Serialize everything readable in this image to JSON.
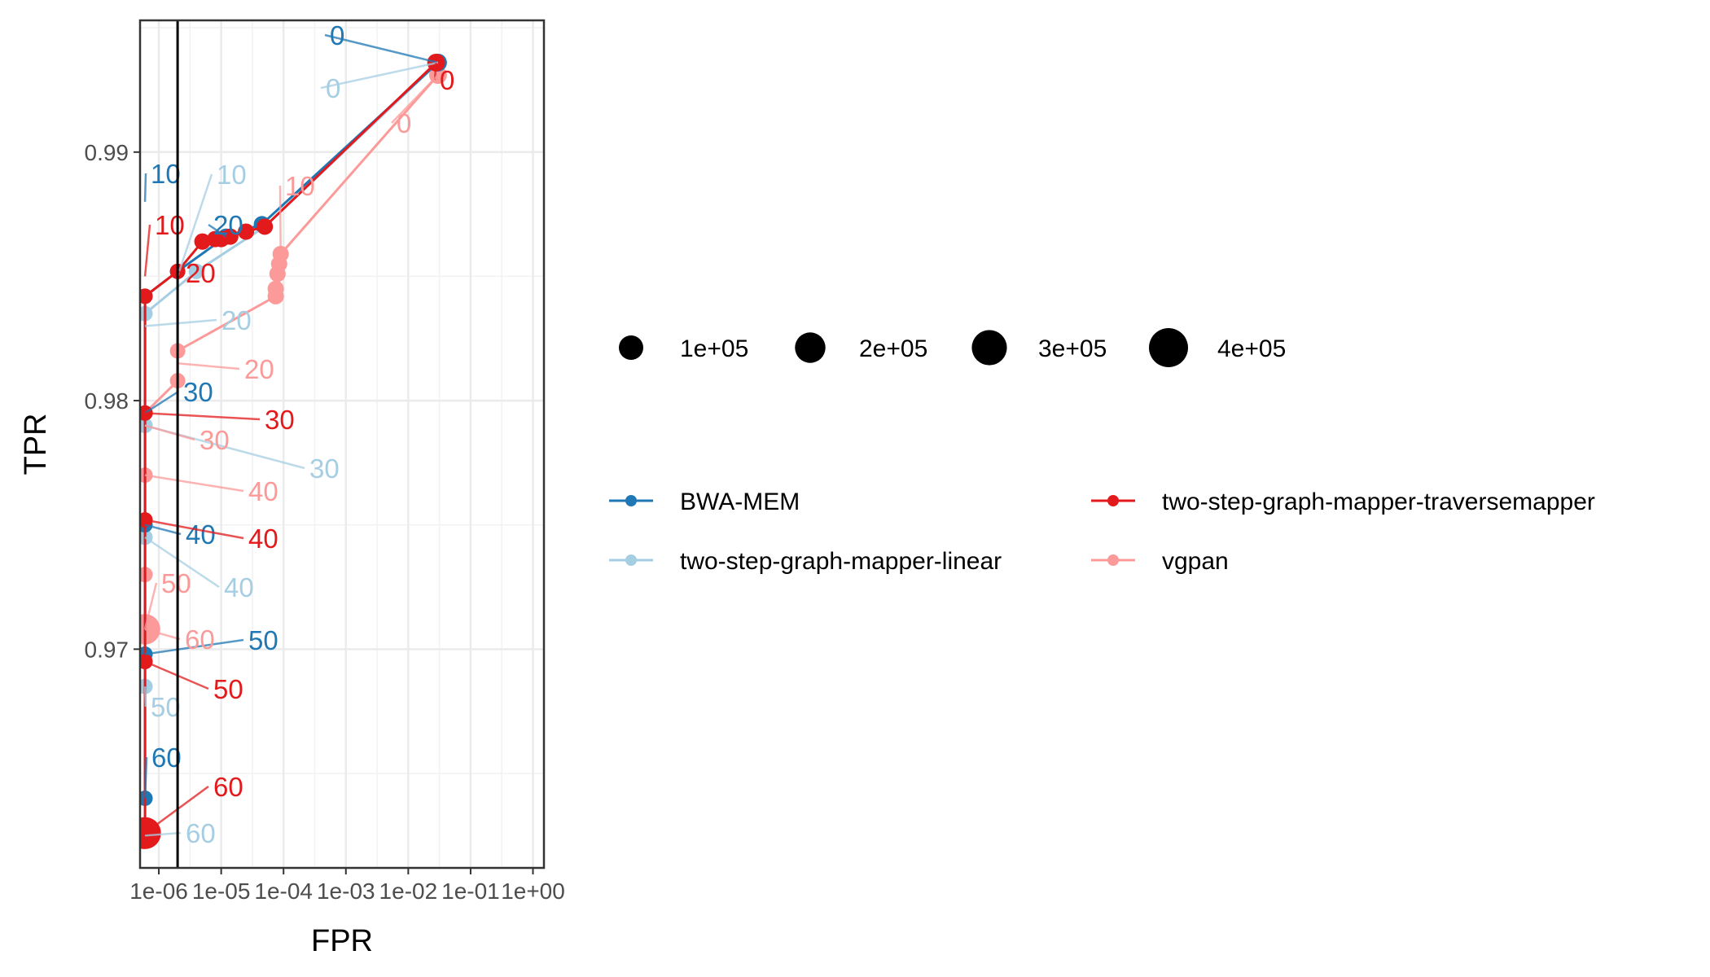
{
  "chart_data": {
    "type": "scatter",
    "title": "",
    "xlabel": "FPR",
    "ylabel": "TPR",
    "x_scale": "log10",
    "xlim": [
      5e-07,
      1.5
    ],
    "ylim": [
      0.9612,
      0.9953
    ],
    "x_ticks": [
      1e-06,
      1e-05,
      0.0001,
      0.001,
      0.01,
      0.1,
      1
    ],
    "x_tick_labels": [
      "1e-06",
      "1e-05",
      "1e-04",
      "1e-03",
      "1e-02",
      "1e-01",
      "1e+00"
    ],
    "y_ticks": [
      0.97,
      0.98,
      0.99
    ],
    "y_tick_labels": [
      "0.97",
      "0.98",
      "0.99"
    ],
    "grid": true,
    "vline_x": 2e-06,
    "size_legend": {
      "labels": [
        "1e+05",
        "2e+05",
        "3e+05",
        "4e+05"
      ],
      "values": [
        100000,
        200000,
        300000,
        400000
      ]
    },
    "legend_position": "right",
    "series": [
      {
        "name": "BWA-MEM",
        "color": "#1f78b4",
        "points": [
          {
            "x": 0.03,
            "y": 0.9936,
            "size": 30000
          },
          {
            "x": 4.5e-05,
            "y": 0.9871,
            "size": 20000
          },
          {
            "x": 1.2e-05,
            "y": 0.9866,
            "size": 20000
          },
          {
            "x": 2e-06,
            "y": 0.9852,
            "size": 15000
          },
          {
            "x": 6e-07,
            "y": 0.9842,
            "size": 15000
          },
          {
            "x": 6e-07,
            "y": 0.9795,
            "size": 15000
          },
          {
            "x": 6e-07,
            "y": 0.975,
            "size": 15000
          },
          {
            "x": 6e-07,
            "y": 0.9698,
            "size": 15000
          },
          {
            "x": 6e-07,
            "y": 0.964,
            "size": 15000
          }
        ],
        "mq_labels": [
          {
            "text": "0",
            "x": 0.03,
            "y": 0.9936
          },
          {
            "text": "10",
            "x": 6e-07,
            "y": 0.988
          },
          {
            "text": "20",
            "x": 1.2e-05,
            "y": 0.9866
          },
          {
            "text": "30",
            "x": 6e-07,
            "y": 0.9795
          },
          {
            "text": "40",
            "x": 6e-07,
            "y": 0.975
          },
          {
            "text": "50",
            "x": 6e-07,
            "y": 0.9698
          },
          {
            "text": "60",
            "x": 6e-07,
            "y": 0.964
          }
        ]
      },
      {
        "name": "two-step-graph-mapper-linear",
        "color": "#a6cee3",
        "points": [
          {
            "x": 0.03,
            "y": 0.9936,
            "size": 30000
          },
          {
            "x": 5e-05,
            "y": 0.987,
            "size": 20000
          },
          {
            "x": 4e-06,
            "y": 0.9852,
            "size": 15000
          },
          {
            "x": 6e-07,
            "y": 0.9835,
            "size": 15000
          },
          {
            "x": 6e-07,
            "y": 0.979,
            "size": 15000
          },
          {
            "x": 6e-07,
            "y": 0.9745,
            "size": 15000
          },
          {
            "x": 6e-07,
            "y": 0.9685,
            "size": 15000
          },
          {
            "x": 6e-07,
            "y": 0.9625,
            "size": 15000
          }
        ],
        "mq_labels": [
          {
            "text": "0",
            "x": 0.03,
            "y": 0.9936
          },
          {
            "text": "10",
            "x": 2e-06,
            "y": 0.985
          },
          {
            "text": "20",
            "x": 6e-07,
            "y": 0.983
          },
          {
            "text": "30",
            "x": 6e-07,
            "y": 0.979
          },
          {
            "text": "40",
            "x": 6e-07,
            "y": 0.9745
          },
          {
            "text": "50",
            "x": 6e-07,
            "y": 0.9685
          },
          {
            "text": "60",
            "x": 6e-07,
            "y": 0.9625
          }
        ]
      },
      {
        "name": "two-step-graph-mapper-traversemapper",
        "color": "#e31a1c",
        "points": [
          {
            "x": 0.028,
            "y": 0.9936,
            "size": 30000
          },
          {
            "x": 5e-05,
            "y": 0.987,
            "size": 20000
          },
          {
            "x": 2.5e-05,
            "y": 0.9868,
            "size": 20000
          },
          {
            "x": 1.4e-05,
            "y": 0.9866,
            "size": 20000
          },
          {
            "x": 1e-05,
            "y": 0.9865,
            "size": 20000
          },
          {
            "x": 8e-06,
            "y": 0.9865,
            "size": 20000
          },
          {
            "x": 5e-06,
            "y": 0.9864,
            "size": 20000
          },
          {
            "x": 2e-06,
            "y": 0.9852,
            "size": 15000
          },
          {
            "x": 6e-07,
            "y": 0.9842,
            "size": 15000
          },
          {
            "x": 6e-07,
            "y": 0.9795,
            "size": 15000
          },
          {
            "x": 6e-07,
            "y": 0.9752,
            "size": 15000
          },
          {
            "x": 6e-07,
            "y": 0.9695,
            "size": 15000
          },
          {
            "x": 6e-07,
            "y": 0.9626,
            "size": 230000
          }
        ],
        "mq_labels": [
          {
            "text": "0",
            "x": 0.028,
            "y": 0.9936
          },
          {
            "text": "10",
            "x": 6e-07,
            "y": 0.985
          },
          {
            "text": "20",
            "x": 2e-06,
            "y": 0.9852
          },
          {
            "text": "30",
            "x": 6e-07,
            "y": 0.9795
          },
          {
            "text": "40",
            "x": 6e-07,
            "y": 0.9752
          },
          {
            "text": "50",
            "x": 6e-07,
            "y": 0.9695
          },
          {
            "text": "60",
            "x": 6e-07,
            "y": 0.9626
          }
        ]
      },
      {
        "name": "vgpan",
        "color": "#fb9a99",
        "points": [
          {
            "x": 0.03,
            "y": 0.9931,
            "size": 30000
          },
          {
            "x": 9e-05,
            "y": 0.9859,
            "size": 20000
          },
          {
            "x": 8.5e-05,
            "y": 0.9855,
            "size": 20000
          },
          {
            "x": 8e-05,
            "y": 0.9851,
            "size": 20000
          },
          {
            "x": 7.5e-05,
            "y": 0.9845,
            "size": 20000
          },
          {
            "x": 7.5e-05,
            "y": 0.9842,
            "size": 20000
          },
          {
            "x": 2e-06,
            "y": 0.982,
            "size": 15000
          },
          {
            "x": 2e-06,
            "y": 0.9808,
            "size": 15000
          },
          {
            "x": 6e-07,
            "y": 0.9795,
            "size": 15000
          },
          {
            "x": 6e-07,
            "y": 0.977,
            "size": 15000
          },
          {
            "x": 6e-07,
            "y": 0.973,
            "size": 15000
          },
          {
            "x": 6e-07,
            "y": 0.9708,
            "size": 200000
          }
        ],
        "mq_labels": [
          {
            "text": "0",
            "x": 0.03,
            "y": 0.9931
          },
          {
            "text": "10",
            "x": 9e-05,
            "y": 0.9859
          },
          {
            "text": "20",
            "x": 2e-06,
            "y": 0.9815
          },
          {
            "text": "30",
            "x": 6e-07,
            "y": 0.979
          },
          {
            "text": "40",
            "x": 6e-07,
            "y": 0.977
          },
          {
            "text": "50",
            "x": 6e-07,
            "y": 0.9708
          },
          {
            "text": "60",
            "x": 6e-07,
            "y": 0.9708
          }
        ]
      }
    ]
  }
}
